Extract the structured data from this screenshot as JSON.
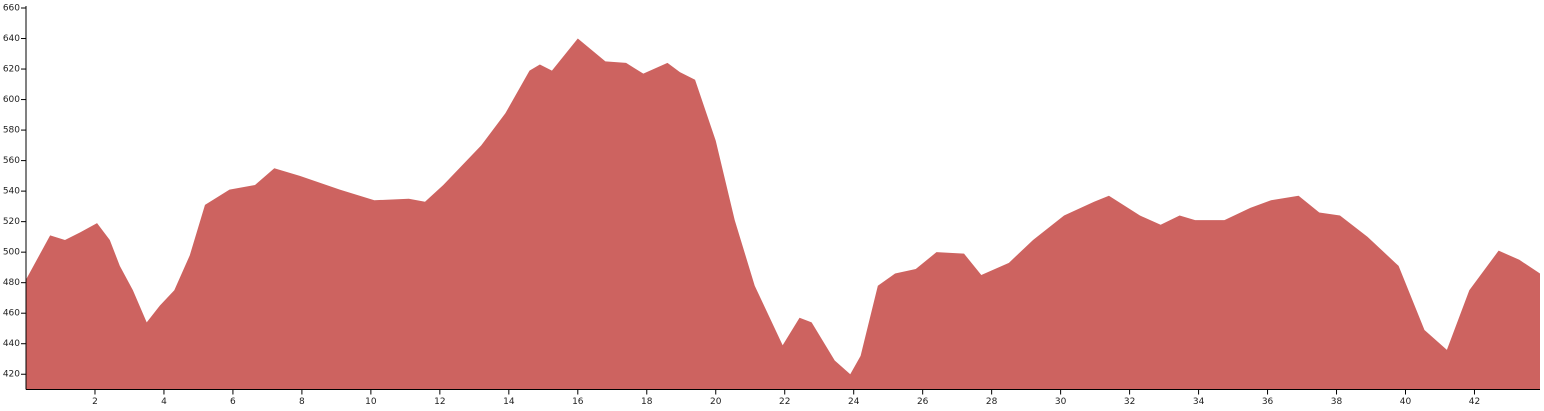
{
  "chart_data": {
    "type": "area",
    "x": [
      0,
      0.7,
      1.13,
      1.57,
      2.06,
      2.43,
      2.72,
      3.1,
      3.5,
      3.88,
      4.3,
      4.75,
      5.19,
      5.9,
      6.64,
      7.2,
      7.94,
      9.1,
      10.1,
      11.1,
      11.57,
      12.1,
      13.2,
      13.9,
      14.6,
      14.9,
      15.25,
      16,
      16.8,
      17.4,
      17.9,
      18.6,
      18.96,
      19.4,
      20,
      20.55,
      21.13,
      21.94,
      22.43,
      22.78,
      23.45,
      23.9,
      24.2,
      24.7,
      25.2,
      25.8,
      26.4,
      27.2,
      27.7,
      28.5,
      29.2,
      30.1,
      30.97,
      31.4,
      32.3,
      32.9,
      33.45,
      33.9,
      34.75,
      35.5,
      36.1,
      36.9,
      37.5,
      38.1,
      38.9,
      39.8,
      40.55,
      41.2,
      41.85,
      42.7,
      43.3,
      43.9
    ],
    "values": [
      482,
      511,
      508,
      513,
      519,
      508,
      491,
      475,
      454,
      465,
      475,
      498,
      531,
      541,
      544,
      555,
      550,
      541,
      534,
      535,
      533,
      544,
      570,
      591,
      619,
      623,
      619,
      640,
      625,
      624,
      617,
      624,
      618,
      613,
      573,
      521,
      478,
      439,
      457,
      454,
      429,
      420,
      432,
      478,
      486,
      489,
      500,
      499,
      485,
      493,
      508,
      524,
      533,
      537,
      524,
      518,
      524,
      521,
      521,
      529,
      534,
      537,
      526,
      524,
      510,
      491,
      449,
      436,
      475,
      501,
      495,
      486
    ],
    "color": "#cd6360",
    "xlim": [
      0,
      43.9
    ],
    "ylim": [
      410,
      660
    ],
    "xticks": [
      2,
      4,
      6,
      8,
      10,
      12,
      14,
      16,
      18,
      20,
      22,
      24,
      26,
      28,
      30,
      32,
      34,
      36,
      38,
      40,
      42
    ],
    "yticks": [
      420,
      440,
      460,
      480,
      500,
      520,
      540,
      560,
      580,
      600,
      620,
      640,
      660
    ]
  }
}
